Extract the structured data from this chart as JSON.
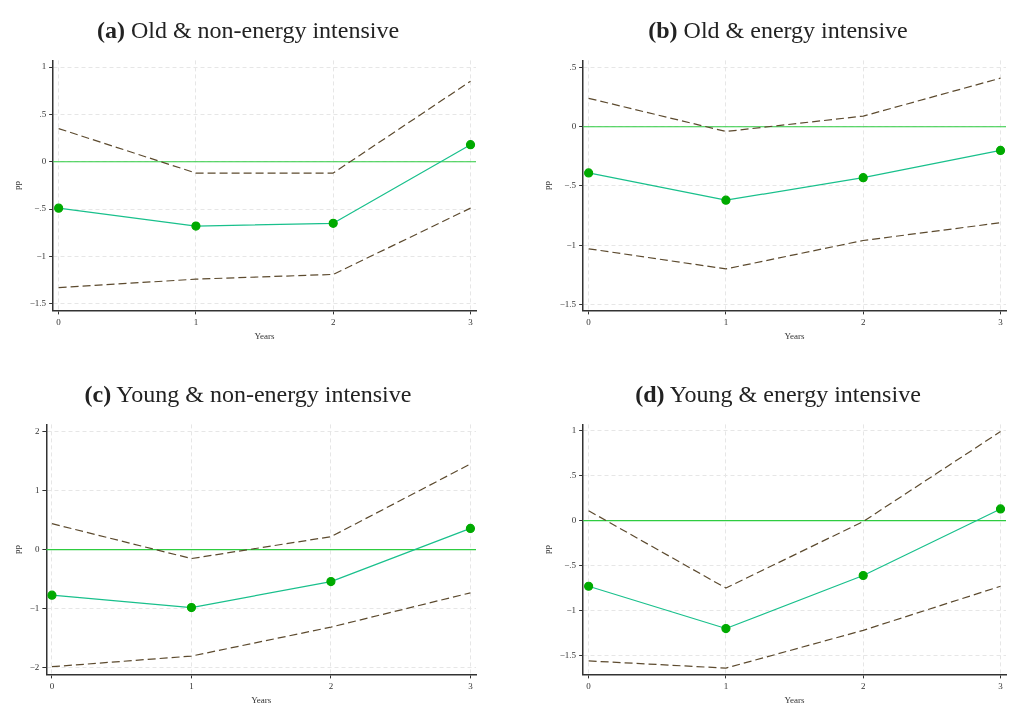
{
  "chart_data": [
    {
      "type": "line",
      "title": "(a) Old & non-energy intensive",
      "xlabel": "Years",
      "ylabel": "pp",
      "x": [
        0,
        1,
        2,
        3
      ],
      "xlim": [
        -0.04,
        3.04
      ],
      "xticks": [
        0,
        1,
        2,
        3
      ],
      "ylim": [
        -1.57,
        1.07
      ],
      "yticks": [
        {
          "value": -1.5,
          "label": "−1.5"
        },
        {
          "value": -1,
          "label": "−1"
        },
        {
          "value": -0.5,
          "label": "−.5"
        },
        0,
        {
          "value": 0.5,
          "label": ".5"
        },
        1
      ],
      "grid": true,
      "ref_lines": [
        {
          "axis": "y",
          "value": 0,
          "color": "#2ecc40"
        }
      ],
      "series": [
        {
          "color": "#5c4a2e",
          "line_style": "dashed",
          "marker": "none",
          "values": [
            0.35,
            -0.12,
            -0.12,
            0.85
          ]
        },
        {
          "color": "#19c08c",
          "line_style": "solid",
          "marker": "circle",
          "values": [
            -0.49,
            -0.68,
            -0.65,
            0.18
          ]
        },
        {
          "color": "#5c4a2e",
          "line_style": "dashed",
          "marker": "none",
          "values": [
            -1.33,
            -1.24,
            -1.19,
            -0.49
          ]
        }
      ]
    },
    {
      "type": "line",
      "title": "(b) Old & energy intensive",
      "xlabel": "Years",
      "ylabel": "pp",
      "x": [
        0,
        1,
        2,
        3
      ],
      "xlim": [
        -0.04,
        3.04
      ],
      "xticks": [
        0,
        1,
        2,
        3
      ],
      "ylim": [
        -1.55,
        0.56
      ],
      "yticks": [
        {
          "value": -1.5,
          "label": "−1.5"
        },
        {
          "value": -1,
          "label": "−1"
        },
        {
          "value": -0.5,
          "label": "−.5"
        },
        0,
        {
          "value": 0.5,
          "label": ".5"
        }
      ],
      "grid": true,
      "ref_lines": [
        {
          "axis": "y",
          "value": 0,
          "color": "#2ecc40"
        }
      ],
      "series": [
        {
          "color": "#5c4a2e",
          "line_style": "dashed",
          "marker": "none",
          "values": [
            0.24,
            -0.04,
            0.09,
            0.41
          ]
        },
        {
          "color": "#19c08c",
          "line_style": "solid",
          "marker": "circle",
          "values": [
            -0.39,
            -0.62,
            -0.43,
            -0.2
          ]
        },
        {
          "color": "#5c4a2e",
          "line_style": "dashed",
          "marker": "none",
          "values": [
            -1.03,
            -1.2,
            -0.96,
            -0.81
          ]
        }
      ]
    },
    {
      "type": "line",
      "title": "(c) Young & non-energy intensive",
      "xlabel": "Years",
      "ylabel": "pp",
      "x": [
        0,
        1,
        2,
        3
      ],
      "xlim": [
        -0.04,
        3.04
      ],
      "xticks": [
        0,
        1,
        2,
        3
      ],
      "ylim": [
        -2.11,
        2.12
      ],
      "yticks": [
        {
          "value": -2,
          "label": "−2"
        },
        {
          "value": -1,
          "label": "−1"
        },
        0,
        1,
        2
      ],
      "grid": true,
      "ref_lines": [
        {
          "axis": "y",
          "value": 0,
          "color": "#2ecc40"
        }
      ],
      "series": [
        {
          "color": "#5c4a2e",
          "line_style": "dashed",
          "marker": "none",
          "values": [
            0.44,
            -0.15,
            0.22,
            1.45
          ]
        },
        {
          "color": "#19c08c",
          "line_style": "solid",
          "marker": "circle",
          "values": [
            -0.77,
            -0.98,
            -0.54,
            0.36
          ]
        },
        {
          "color": "#5c4a2e",
          "line_style": "dashed",
          "marker": "none",
          "values": [
            -1.98,
            -1.8,
            -1.31,
            -0.73
          ]
        }
      ]
    },
    {
      "type": "line",
      "title": "(d) Young & energy intensive",
      "xlabel": "Years",
      "ylabel": "pp",
      "x": [
        0,
        1,
        2,
        3
      ],
      "xlim": [
        -0.04,
        3.04
      ],
      "xticks": [
        0,
        1,
        2,
        3
      ],
      "ylim": [
        -1.71,
        1.07
      ],
      "yticks": [
        {
          "value": -1.5,
          "label": "−1.5"
        },
        {
          "value": -1,
          "label": "−1"
        },
        {
          "value": -0.5,
          "label": "−.5"
        },
        0,
        {
          "value": 0.5,
          "label": ".5"
        },
        1
      ],
      "grid": true,
      "ref_lines": [
        {
          "axis": "y",
          "value": 0,
          "color": "#2ecc40"
        }
      ],
      "series": [
        {
          "color": "#5c4a2e",
          "line_style": "dashed",
          "marker": "none",
          "values": [
            0.11,
            -0.75,
            -0.01,
            0.99
          ]
        },
        {
          "color": "#19c08c",
          "line_style": "solid",
          "marker": "circle",
          "values": [
            -0.73,
            -1.2,
            -0.61,
            0.13
          ]
        },
        {
          "color": "#5c4a2e",
          "line_style": "dashed",
          "marker": "none",
          "values": [
            -1.56,
            -1.64,
            -1.22,
            -0.73
          ]
        }
      ]
    }
  ]
}
